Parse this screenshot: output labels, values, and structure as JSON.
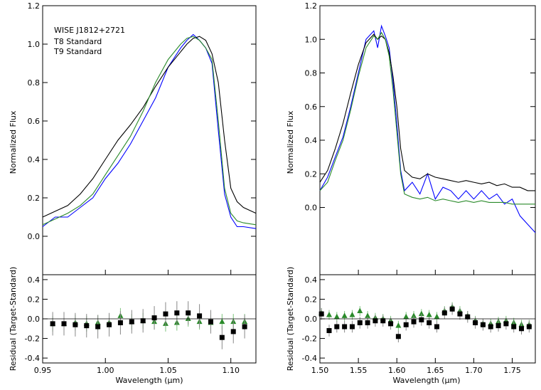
{
  "chart_data": [
    {
      "type": "line",
      "panel": "left",
      "ylabel": "Normalized Flux",
      "xlim": [
        0.95,
        1.12
      ],
      "ylim": [
        -0.2,
        1.2
      ],
      "yticks": [
        "0.0",
        "0.2",
        "0.4",
        "0.6",
        "0.8",
        "1.0",
        "1.2"
      ],
      "legend_position": "top-left",
      "legend": [
        {
          "label": "WISE J1812+2721",
          "color": "#0000ff"
        },
        {
          "label": "T8 Standard",
          "color": "#000000"
        },
        {
          "label": "T9 Standard",
          "color": "#2a8a2a"
        }
      ],
      "series": [
        {
          "name": "WISE J1812+2721",
          "color": "#0000ff",
          "x": [
            0.95,
            0.96,
            0.97,
            0.98,
            0.99,
            1.0,
            1.01,
            1.02,
            1.03,
            1.04,
            1.05,
            1.06,
            1.065,
            1.07,
            1.075,
            1.08,
            1.085,
            1.09,
            1.095,
            1.1,
            1.105,
            1.11,
            1.12
          ],
          "y": [
            0.05,
            0.1,
            0.1,
            0.15,
            0.2,
            0.3,
            0.38,
            0.48,
            0.6,
            0.72,
            0.88,
            0.98,
            1.02,
            1.05,
            1.02,
            0.98,
            0.9,
            0.55,
            0.22,
            0.1,
            0.05,
            0.05,
            0.04
          ]
        },
        {
          "name": "T8 Standard",
          "color": "#000000",
          "x": [
            0.95,
            0.96,
            0.97,
            0.98,
            0.99,
            1.0,
            1.01,
            1.02,
            1.03,
            1.04,
            1.05,
            1.06,
            1.065,
            1.07,
            1.075,
            1.08,
            1.085,
            1.09,
            1.095,
            1.1,
            1.105,
            1.11,
            1.12
          ],
          "y": [
            0.1,
            0.13,
            0.16,
            0.22,
            0.3,
            0.4,
            0.5,
            0.58,
            0.67,
            0.78,
            0.88,
            0.96,
            1.0,
            1.03,
            1.04,
            1.02,
            0.95,
            0.8,
            0.5,
            0.25,
            0.18,
            0.15,
            0.12
          ]
        },
        {
          "name": "T9 Standard",
          "color": "#2a8a2a",
          "x": [
            0.95,
            0.96,
            0.97,
            0.98,
            0.99,
            1.0,
            1.01,
            1.02,
            1.03,
            1.04,
            1.05,
            1.06,
            1.065,
            1.07,
            1.075,
            1.08,
            1.085,
            1.09,
            1.095,
            1.1,
            1.105,
            1.11,
            1.12
          ],
          "y": [
            0.06,
            0.09,
            0.12,
            0.16,
            0.22,
            0.32,
            0.42,
            0.52,
            0.65,
            0.8,
            0.92,
            1.0,
            1.03,
            1.04,
            1.02,
            0.98,
            0.92,
            0.6,
            0.25,
            0.12,
            0.08,
            0.07,
            0.06
          ]
        }
      ],
      "residual": {
        "ylabel": "Residual (Target-Standard)",
        "xlabel": "Wavelength (μm)",
        "ylim": [
          -0.45,
          0.45
        ],
        "yticks": [
          "-0.4",
          "-0.2",
          "0.0",
          "0.2",
          "0.4"
        ],
        "xticks": [
          "0.95",
          "1.00",
          "1.05",
          "1.10"
        ],
        "xtick_values": [
          0.95,
          1.0,
          1.05,
          1.1
        ],
        "T8": {
          "x": [
            0.958,
            0.967,
            0.976,
            0.985,
            0.994,
            1.003,
            1.012,
            1.021,
            1.03,
            1.039,
            1.048,
            1.057,
            1.066,
            1.075,
            1.084,
            1.093,
            1.102,
            1.111
          ],
          "y": [
            -0.05,
            -0.05,
            -0.06,
            -0.07,
            -0.08,
            -0.06,
            -0.04,
            -0.03,
            -0.02,
            0.01,
            0.05,
            0.06,
            0.06,
            0.03,
            -0.03,
            -0.19,
            -0.13,
            -0.08
          ],
          "err": [
            0.12,
            0.12,
            0.12,
            0.12,
            0.12,
            0.12,
            0.12,
            0.12,
            0.12,
            0.12,
            0.12,
            0.12,
            0.12,
            0.12,
            0.12,
            0.12,
            0.12,
            0.12
          ]
        },
        "T9": {
          "x": [
            0.958,
            0.967,
            0.976,
            0.985,
            0.994,
            1.003,
            1.012,
            1.021,
            1.03,
            1.039,
            1.048,
            1.057,
            1.066,
            1.075,
            1.084,
            1.093,
            1.102,
            1.111
          ],
          "y": [
            -0.05,
            -0.05,
            -0.04,
            -0.05,
            -0.04,
            -0.04,
            0.03,
            -0.03,
            -0.02,
            -0.03,
            -0.05,
            -0.04,
            0.0,
            -0.03,
            -0.04,
            -0.03,
            -0.03,
            -0.03
          ],
          "err": [
            0.08,
            0.08,
            0.08,
            0.08,
            0.08,
            0.08,
            0.08,
            0.08,
            0.08,
            0.08,
            0.08,
            0.08,
            0.08,
            0.08,
            0.08,
            0.08,
            0.08,
            0.08
          ]
        }
      }
    },
    {
      "type": "line",
      "panel": "right",
      "ylabel": "Normalized Flux",
      "xlim": [
        1.5,
        1.78
      ],
      "ylim": [
        -0.4,
        1.2
      ],
      "yticks": [
        "0.0",
        "0.2",
        "0.4",
        "0.6",
        "0.8",
        "1.0",
        "1.2"
      ],
      "series": [
        {
          "name": "WISE J1812+2721",
          "color": "#0000ff",
          "x": [
            1.5,
            1.51,
            1.52,
            1.53,
            1.54,
            1.55,
            1.56,
            1.57,
            1.575,
            1.58,
            1.585,
            1.59,
            1.595,
            1.6,
            1.605,
            1.61,
            1.62,
            1.63,
            1.64,
            1.65,
            1.66,
            1.67,
            1.68,
            1.69,
            1.7,
            1.71,
            1.72,
            1.73,
            1.74,
            1.75,
            1.76,
            1.77,
            1.78
          ],
          "y": [
            0.1,
            0.18,
            0.3,
            0.42,
            0.6,
            0.8,
            1.0,
            1.05,
            0.95,
            1.08,
            1.02,
            0.95,
            0.75,
            0.5,
            0.22,
            0.1,
            0.15,
            0.08,
            0.2,
            0.05,
            0.12,
            0.1,
            0.05,
            0.1,
            0.05,
            0.1,
            0.05,
            0.08,
            0.02,
            0.05,
            -0.05,
            -0.1,
            -0.15
          ]
        },
        {
          "name": "T8 Standard",
          "color": "#000000",
          "x": [
            1.5,
            1.51,
            1.52,
            1.53,
            1.54,
            1.55,
            1.56,
            1.57,
            1.575,
            1.58,
            1.585,
            1.59,
            1.595,
            1.6,
            1.605,
            1.61,
            1.62,
            1.63,
            1.64,
            1.65,
            1.66,
            1.67,
            1.68,
            1.69,
            1.7,
            1.71,
            1.72,
            1.73,
            1.74,
            1.75,
            1.76,
            1.77,
            1.78
          ],
          "y": [
            0.15,
            0.22,
            0.35,
            0.5,
            0.68,
            0.85,
            0.98,
            1.03,
            1.0,
            1.02,
            1.0,
            0.92,
            0.78,
            0.6,
            0.35,
            0.22,
            0.18,
            0.17,
            0.2,
            0.18,
            0.17,
            0.16,
            0.15,
            0.16,
            0.15,
            0.14,
            0.15,
            0.13,
            0.14,
            0.12,
            0.12,
            0.1,
            0.1
          ]
        },
        {
          "name": "T9 Standard",
          "color": "#2a8a2a",
          "x": [
            1.5,
            1.51,
            1.52,
            1.53,
            1.54,
            1.55,
            1.56,
            1.57,
            1.575,
            1.58,
            1.585,
            1.59,
            1.595,
            1.6,
            1.605,
            1.61,
            1.62,
            1.63,
            1.64,
            1.65,
            1.66,
            1.67,
            1.68,
            1.69,
            1.7,
            1.71,
            1.72,
            1.73,
            1.74,
            1.75,
            1.76,
            1.77,
            1.78
          ],
          "y": [
            0.1,
            0.15,
            0.28,
            0.4,
            0.58,
            0.78,
            0.95,
            1.02,
            1.0,
            1.04,
            1.0,
            0.9,
            0.7,
            0.45,
            0.2,
            0.08,
            0.06,
            0.05,
            0.06,
            0.04,
            0.05,
            0.04,
            0.03,
            0.04,
            0.03,
            0.04,
            0.03,
            0.03,
            0.03,
            0.02,
            0.02,
            0.02,
            0.02
          ]
        }
      ],
      "residual": {
        "ylabel": "Residual (Target-Standard)",
        "xlabel": "Wavelength (μm)",
        "ylim": [
          -0.45,
          0.45
        ],
        "yticks": [
          "-0.4",
          "-0.2",
          "0.0",
          "0.2",
          "0.4"
        ],
        "xticks": [
          "1.50",
          "1.55",
          "1.60",
          "1.65",
          "1.70",
          "1.75"
        ],
        "xtick_values": [
          1.5,
          1.55,
          1.6,
          1.65,
          1.7,
          1.75
        ],
        "T8": {
          "x": [
            1.502,
            1.512,
            1.522,
            1.532,
            1.542,
            1.552,
            1.562,
            1.572,
            1.582,
            1.592,
            1.602,
            1.612,
            1.622,
            1.632,
            1.642,
            1.652,
            1.662,
            1.672,
            1.682,
            1.692,
            1.702,
            1.712,
            1.722,
            1.732,
            1.742,
            1.752,
            1.762,
            1.772
          ],
          "y": [
            0.05,
            -0.12,
            -0.08,
            -0.08,
            -0.08,
            -0.04,
            -0.04,
            -0.02,
            -0.02,
            -0.05,
            -0.18,
            -0.06,
            -0.03,
            -0.01,
            -0.04,
            -0.08,
            0.06,
            0.1,
            0.05,
            0.02,
            -0.04,
            -0.06,
            -0.08,
            -0.07,
            -0.05,
            -0.08,
            -0.1,
            -0.08
          ],
          "err": [
            0.06,
            0.06,
            0.06,
            0.06,
            0.06,
            0.06,
            0.06,
            0.06,
            0.06,
            0.06,
            0.06,
            0.06,
            0.06,
            0.06,
            0.06,
            0.06,
            0.06,
            0.06,
            0.06,
            0.06,
            0.06,
            0.06,
            0.06,
            0.06,
            0.06,
            0.06,
            0.06,
            0.06
          ]
        },
        "T9": {
          "x": [
            1.502,
            1.512,
            1.522,
            1.532,
            1.542,
            1.552,
            1.562,
            1.572,
            1.582,
            1.592,
            1.602,
            1.612,
            1.622,
            1.632,
            1.642,
            1.652,
            1.662,
            1.672,
            1.682,
            1.692,
            1.702,
            1.712,
            1.722,
            1.732,
            1.742,
            1.752,
            1.762,
            1.772
          ],
          "y": [
            0.06,
            0.04,
            0.02,
            0.03,
            0.04,
            0.08,
            0.03,
            0.01,
            0.0,
            -0.02,
            -0.07,
            0.02,
            0.03,
            0.05,
            0.04,
            0.02,
            0.08,
            0.12,
            0.08,
            0.03,
            -0.02,
            -0.05,
            -0.05,
            -0.03,
            -0.02,
            -0.04,
            -0.06,
            -0.06
          ],
          "err": [
            0.05,
            0.05,
            0.05,
            0.05,
            0.05,
            0.05,
            0.05,
            0.05,
            0.05,
            0.05,
            0.05,
            0.05,
            0.05,
            0.05,
            0.05,
            0.05,
            0.05,
            0.05,
            0.05,
            0.05,
            0.05,
            0.05,
            0.05,
            0.05,
            0.05,
            0.05,
            0.05,
            0.05
          ]
        }
      }
    }
  ]
}
